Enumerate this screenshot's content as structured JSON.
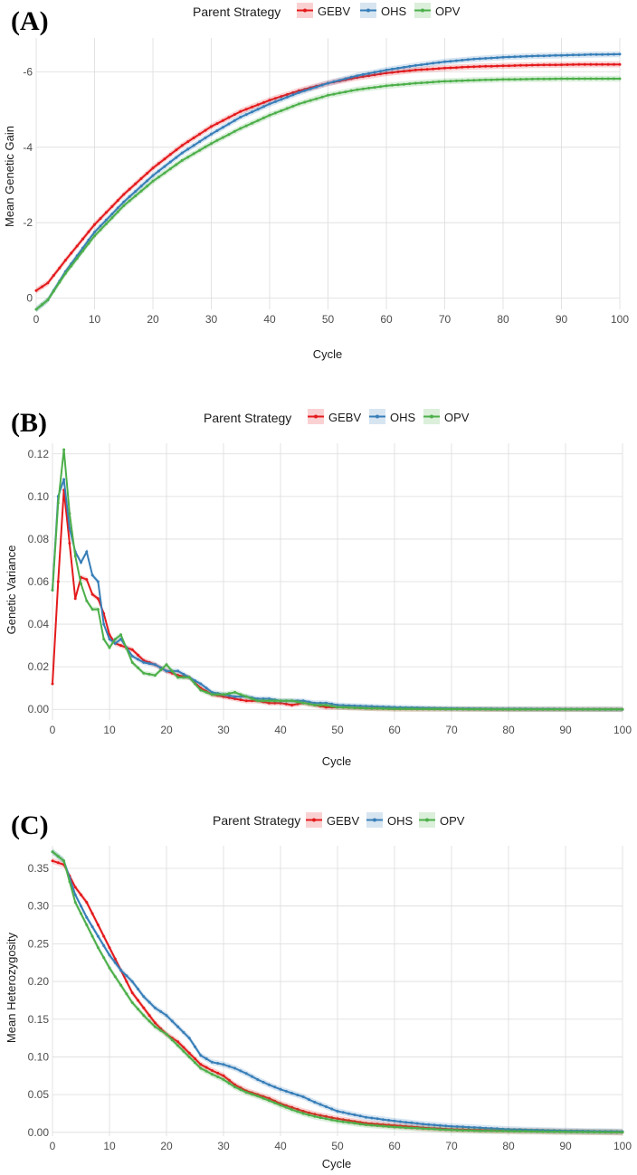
{
  "legend": {
    "title": "Parent Strategy",
    "entries": [
      "GEBV",
      "OHS",
      "OPV"
    ]
  },
  "colors": {
    "GEBV": "#e41a1c",
    "OHS": "#377eb8",
    "OPV": "#4daf4a"
  },
  "chart_data": [
    {
      "panel": "(A)",
      "type": "line",
      "xlabel": "Cycle",
      "ylabel": "Mean Genetic Gain",
      "xlim": [
        0,
        100
      ],
      "ylim": [
        0.3,
        -6.9
      ],
      "x_ticks": [
        0,
        10,
        20,
        30,
        40,
        50,
        60,
        70,
        80,
        90,
        100
      ],
      "y_ticks": [
        0,
        -2,
        -4,
        -6
      ],
      "y_tick_labels": [
        "0",
        "-2",
        "-4",
        "-6"
      ],
      "x_tick_labels": [
        "0",
        "10",
        "20",
        "30",
        "40",
        "50",
        "60",
        "70",
        "80",
        "90",
        "100"
      ],
      "ribbon": 0.08,
      "series": [
        {
          "name": "GEBV",
          "x": [
            0,
            2,
            5,
            10,
            15,
            20,
            25,
            30,
            35,
            40,
            45,
            50,
            55,
            60,
            65,
            70,
            75,
            80,
            85,
            90,
            95,
            100
          ],
          "values": [
            -0.2,
            -0.4,
            -1.0,
            -1.95,
            -2.75,
            -3.45,
            -4.05,
            -4.55,
            -4.95,
            -5.25,
            -5.5,
            -5.7,
            -5.85,
            -5.97,
            -6.05,
            -6.1,
            -6.14,
            -6.16,
            -6.18,
            -6.19,
            -6.2,
            -6.2
          ]
        },
        {
          "name": "OHS",
          "x": [
            0,
            2,
            5,
            10,
            15,
            20,
            25,
            30,
            35,
            40,
            45,
            50,
            55,
            60,
            65,
            70,
            75,
            80,
            85,
            90,
            95,
            100
          ],
          "values": [
            0.3,
            0.05,
            -0.7,
            -1.75,
            -2.55,
            -3.25,
            -3.85,
            -4.35,
            -4.8,
            -5.15,
            -5.45,
            -5.7,
            -5.9,
            -6.05,
            -6.17,
            -6.27,
            -6.34,
            -6.39,
            -6.42,
            -6.44,
            -6.46,
            -6.47
          ]
        },
        {
          "name": "OPV",
          "x": [
            0,
            2,
            5,
            10,
            15,
            20,
            25,
            30,
            35,
            40,
            45,
            50,
            55,
            60,
            65,
            70,
            75,
            80,
            85,
            90,
            95,
            100
          ],
          "values": [
            0.3,
            0.05,
            -0.65,
            -1.65,
            -2.45,
            -3.1,
            -3.65,
            -4.1,
            -4.5,
            -4.85,
            -5.15,
            -5.38,
            -5.53,
            -5.63,
            -5.7,
            -5.75,
            -5.78,
            -5.8,
            -5.81,
            -5.82,
            -5.82,
            -5.82
          ]
        }
      ]
    },
    {
      "panel": "(B)",
      "type": "line",
      "xlabel": "Cycle",
      "ylabel": "Genetic Variance",
      "xlim": [
        0,
        100
      ],
      "ylim": [
        -0.005,
        0.125
      ],
      "x_ticks": [
        0,
        10,
        20,
        30,
        40,
        50,
        60,
        70,
        80,
        90,
        100
      ],
      "y_ticks": [
        0,
        0.02,
        0.04,
        0.06,
        0.08,
        0.1,
        0.12
      ],
      "y_tick_labels": [
        "0.00",
        "0.02",
        "0.04",
        "0.06",
        "0.08",
        "0.10",
        "0.12"
      ],
      "x_tick_labels": [
        "0",
        "10",
        "20",
        "30",
        "40",
        "50",
        "60",
        "70",
        "80",
        "90",
        "100"
      ],
      "ribbon": 0.0012,
      "series": [
        {
          "name": "GEBV",
          "x": [
            0,
            1,
            2,
            3,
            4,
            5,
            6,
            7,
            8,
            9,
            10,
            11,
            12,
            14,
            16,
            18,
            20,
            22,
            24,
            26,
            28,
            30,
            32,
            34,
            36,
            38,
            40,
            42,
            44,
            46,
            48,
            50,
            55,
            60,
            70,
            80,
            90,
            100
          ],
          "values": [
            0.012,
            0.06,
            0.103,
            0.078,
            0.052,
            0.062,
            0.061,
            0.054,
            0.052,
            0.045,
            0.035,
            0.031,
            0.03,
            0.028,
            0.023,
            0.021,
            0.018,
            0.016,
            0.015,
            0.01,
            0.007,
            0.006,
            0.005,
            0.004,
            0.004,
            0.003,
            0.003,
            0.002,
            0.003,
            0.002,
            0.001,
            0.001,
            0.0005,
            0.0002,
            0.0001,
            0.0,
            0.0,
            0.0
          ]
        },
        {
          "name": "OHS",
          "x": [
            0,
            1,
            2,
            3,
            4,
            5,
            6,
            7,
            8,
            9,
            10,
            11,
            12,
            14,
            16,
            18,
            20,
            22,
            24,
            26,
            28,
            30,
            32,
            34,
            36,
            38,
            40,
            42,
            44,
            46,
            48,
            50,
            55,
            60,
            70,
            80,
            90,
            100
          ],
          "values": [
            0.056,
            0.1,
            0.108,
            0.085,
            0.074,
            0.069,
            0.074,
            0.063,
            0.06,
            0.04,
            0.033,
            0.031,
            0.033,
            0.025,
            0.022,
            0.021,
            0.018,
            0.018,
            0.015,
            0.012,
            0.008,
            0.007,
            0.006,
            0.006,
            0.005,
            0.005,
            0.004,
            0.004,
            0.004,
            0.003,
            0.003,
            0.002,
            0.0015,
            0.001,
            0.0004,
            0.0002,
            0.0001,
            0.0
          ]
        },
        {
          "name": "OPV",
          "x": [
            0,
            1,
            2,
            3,
            4,
            5,
            6,
            7,
            8,
            9,
            10,
            11,
            12,
            14,
            16,
            18,
            20,
            22,
            24,
            26,
            28,
            30,
            32,
            34,
            36,
            38,
            40,
            42,
            44,
            46,
            48,
            50,
            55,
            60,
            70,
            80,
            90,
            100
          ],
          "values": [
            0.056,
            0.097,
            0.122,
            0.092,
            0.072,
            0.059,
            0.051,
            0.047,
            0.047,
            0.033,
            0.029,
            0.033,
            0.035,
            0.022,
            0.017,
            0.016,
            0.021,
            0.015,
            0.015,
            0.009,
            0.007,
            0.007,
            0.008,
            0.006,
            0.004,
            0.004,
            0.004,
            0.004,
            0.003,
            0.002,
            0.002,
            0.001,
            0.0005,
            0.0002,
            0.0001,
            0.0,
            0.0,
            0.0
          ]
        }
      ]
    },
    {
      "panel": "(C)",
      "type": "line",
      "xlabel": "Cycle",
      "ylabel": "Mean Heterozygosity",
      "xlim": [
        0,
        100
      ],
      "ylim": [
        -0.005,
        0.38
      ],
      "x_ticks": [
        0,
        10,
        20,
        30,
        40,
        50,
        60,
        70,
        80,
        90,
        100
      ],
      "y_ticks": [
        0,
        0.05,
        0.1,
        0.15,
        0.2,
        0.25,
        0.3,
        0.35
      ],
      "y_tick_labels": [
        "0.00",
        "0.05",
        "0.10",
        "0.15",
        "0.20",
        "0.25",
        "0.30",
        "0.35"
      ],
      "x_tick_labels": [
        "0",
        "10",
        "20",
        "30",
        "40",
        "50",
        "60",
        "70",
        "80",
        "90",
        "100"
      ],
      "ribbon": 0.004,
      "series": [
        {
          "name": "GEBV",
          "x": [
            0,
            2,
            4,
            6,
            8,
            10,
            12,
            14,
            16,
            18,
            20,
            22,
            24,
            26,
            28,
            30,
            32,
            34,
            36,
            38,
            40,
            42,
            44,
            46,
            48,
            50,
            55,
            60,
            65,
            70,
            75,
            80,
            90,
            100
          ],
          "values": [
            0.36,
            0.355,
            0.325,
            0.305,
            0.275,
            0.245,
            0.215,
            0.185,
            0.165,
            0.145,
            0.13,
            0.12,
            0.105,
            0.09,
            0.082,
            0.075,
            0.063,
            0.055,
            0.05,
            0.045,
            0.038,
            0.033,
            0.028,
            0.024,
            0.021,
            0.018,
            0.012,
            0.009,
            0.006,
            0.004,
            0.003,
            0.002,
            0.001,
            0.0
          ]
        },
        {
          "name": "OHS",
          "x": [
            0,
            2,
            4,
            6,
            8,
            10,
            12,
            14,
            16,
            18,
            20,
            22,
            24,
            26,
            28,
            30,
            32,
            34,
            36,
            38,
            40,
            42,
            44,
            46,
            48,
            50,
            55,
            60,
            65,
            70,
            75,
            80,
            90,
            100
          ],
          "values": [
            0.372,
            0.36,
            0.315,
            0.285,
            0.26,
            0.235,
            0.215,
            0.2,
            0.18,
            0.165,
            0.155,
            0.14,
            0.125,
            0.102,
            0.093,
            0.09,
            0.085,
            0.078,
            0.07,
            0.063,
            0.057,
            0.052,
            0.047,
            0.04,
            0.034,
            0.028,
            0.02,
            0.015,
            0.011,
            0.008,
            0.006,
            0.004,
            0.002,
            0.001
          ]
        },
        {
          "name": "OPV",
          "x": [
            0,
            2,
            4,
            6,
            8,
            10,
            12,
            14,
            16,
            18,
            20,
            22,
            24,
            26,
            28,
            30,
            32,
            34,
            36,
            38,
            40,
            42,
            44,
            46,
            48,
            50,
            55,
            60,
            65,
            70,
            75,
            80,
            90,
            100
          ],
          "values": [
            0.372,
            0.36,
            0.305,
            0.275,
            0.245,
            0.218,
            0.195,
            0.172,
            0.155,
            0.14,
            0.13,
            0.115,
            0.1,
            0.085,
            0.077,
            0.07,
            0.06,
            0.053,
            0.048,
            0.042,
            0.036,
            0.03,
            0.025,
            0.021,
            0.018,
            0.015,
            0.01,
            0.007,
            0.005,
            0.003,
            0.002,
            0.0015,
            0.0005,
            0.0
          ]
        }
      ]
    }
  ]
}
